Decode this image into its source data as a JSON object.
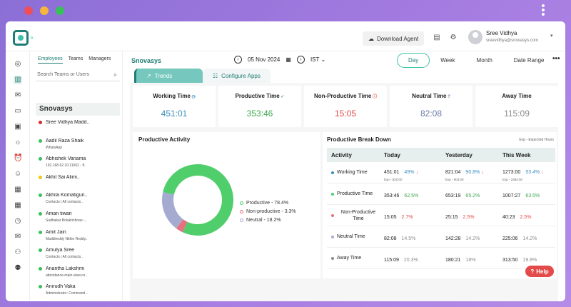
{
  "colors": {
    "accent": "#1e7d74",
    "accent_light": "#3ec1a8",
    "productive": "#4fce6b",
    "non_productive": "#e5727e",
    "neutral": "#a4aad0",
    "away": "#8d8d8d",
    "working_value": "#3a8dbf",
    "down": "#e34b4b"
  },
  "window_dots": [
    "#ee4e5a",
    "#f6b53f",
    "#37c15a"
  ],
  "header": {
    "download_label": "Download Agent",
    "user_name": "Sree Vidhya",
    "user_email": "sreevidhya@snovasys.com"
  },
  "employees": {
    "tabs": [
      "Employees",
      "Teams",
      "Managers"
    ],
    "search_placeholder": "Search Teams or Users",
    "org_name": "Snovasys",
    "list": [
      {
        "name": "Sree Vidhya Madd..",
        "sub": "",
        "status": "#e0282f"
      },
      {
        "name": "Aadil Raza Shaik",
        "sub": "WhatsApp",
        "status": "#37c15a"
      },
      {
        "name": "Abhishek Vanama",
        "sub": "192.168.62.10:11062 - If..",
        "status": "#37c15a"
      },
      {
        "name": "Akhil Sai Alimi..",
        "sub": "",
        "status": "#f2c613"
      },
      {
        "name": "Akhila Komatigun..",
        "sub": "Contacts | All contacts..",
        "status": "#37c15a"
      },
      {
        "name": "Aman tiwari",
        "sub": "Sudhakar Bolakrishnan -..",
        "status": "#37c15a"
      },
      {
        "name": "Amit Jain",
        "sub": "Maddireddy Nithin Reddy..",
        "status": "#37c15a"
      },
      {
        "name": "Amulya Sree",
        "sub": "Contacts | All contacts..",
        "status": "#37c15a"
      },
      {
        "name": "Anantha Lakshmi",
        "sub": "attendance-main-view.co..",
        "status": "#37c15a"
      },
      {
        "name": "Anirudh Vaka",
        "sub": "Administrator: Command ..",
        "status": "#37c15a"
      },
      {
        "name": "Anuhya Ellandula",
        "sub": "Tasks - Google Chrome",
        "status": "#37c15a"
      }
    ]
  },
  "main": {
    "title": "Snovasys",
    "date": "05 Nov 2024",
    "timezone": "IST",
    "range_tabs": [
      "Day",
      "Week",
      "Month",
      "Date Range"
    ],
    "view_tabs": [
      "Trends",
      "Configure Apps"
    ]
  },
  "stats": [
    {
      "label": "Working Time",
      "value": "451:01",
      "color": "#3a8dbf"
    },
    {
      "label": "Productive Time",
      "value": "353:46",
      "color": "#3fa84f"
    },
    {
      "label": "Non-Productive Time",
      "value": "15:05",
      "color": "#e34b4b"
    },
    {
      "label": "Neutral Time",
      "value": "82:08",
      "color": "#6b7ba7"
    },
    {
      "label": "Away Time",
      "value": "115:09",
      "color": "#8d8d8d"
    }
  ],
  "activity": {
    "title": "Productive Activity",
    "legend": [
      {
        "label": "Productive - 78.4%",
        "color": "#4fce6b"
      },
      {
        "label": "Non-productive - 3.3%",
        "color": "#e5727e"
      },
      {
        "label": "Neutral - 18.2%",
        "color": "#a4aad0"
      }
    ]
  },
  "chart_data": {
    "type": "pie",
    "title": "Productive Activity",
    "categories": [
      "Productive",
      "Non-productive",
      "Neutral"
    ],
    "values": [
      78.4,
      3.3,
      18.2
    ],
    "legend_position": "right"
  },
  "breakdown": {
    "title": "Productive Break Down",
    "note": "Exp - Expected Hours",
    "headers": [
      "Activity",
      "Today",
      "Yesterday",
      "This Week"
    ],
    "rows": [
      {
        "activity": "Working Time",
        "dot": "#3a8dbf",
        "today": "451:01",
        "today_pct": "49%",
        "today_pct_color": "#3a8dbf",
        "today_down": "↓",
        "today_exp": "Exp - 920:00",
        "yesterday": "821:04",
        "yesterday_pct": "90.8%",
        "yesterday_pct_color": "#3a8dbf",
        "yesterday_down": "↓",
        "yesterday_exp": "Exp - 904:00",
        "week": "1273:00",
        "week_pct": "53.4%",
        "week_pct_color": "#3a8dbf",
        "week_down": "↓",
        "week_exp": "Exp - 2384:00"
      },
      {
        "activity": "Productive Time",
        "dot": "#4fce6b",
        "today": "353:46",
        "today_pct": "62.5%",
        "today_pct_color": "#3fa84f",
        "today_down": "",
        "today_exp": "",
        "yesterday": "653:19",
        "yesterday_pct": "65.2%",
        "yesterday_pct_color": "#3fa84f",
        "yesterday_down": "",
        "yesterday_exp": "",
        "week": "1007:27",
        "week_pct": "63.5%",
        "week_pct_color": "#3fa84f",
        "week_down": "",
        "week_exp": ""
      },
      {
        "activity": "Non-Productive Time",
        "dot": "#e5727e",
        "today": "15:05",
        "today_pct": "2.7%",
        "today_pct_color": "#e34b4b",
        "today_down": "",
        "today_exp": "",
        "yesterday": "25:15",
        "yesterday_pct": "2.5%",
        "yesterday_pct_color": "#e34b4b",
        "yesterday_down": "",
        "yesterday_exp": "",
        "week": "40:23",
        "week_pct": "2.5%",
        "week_pct_color": "#e34b4b",
        "week_down": "",
        "week_exp": ""
      },
      {
        "activity": "Neutral Time",
        "dot": "#a4aad0",
        "today": "82:08",
        "today_pct": "14.5%",
        "today_pct_color": "#8d8d8d",
        "today_down": "",
        "today_exp": "",
        "yesterday": "142:28",
        "yesterday_pct": "14.2%",
        "yesterday_pct_color": "#8d8d8d",
        "yesterday_down": "",
        "yesterday_exp": "",
        "week": "225:06",
        "week_pct": "14.2%",
        "week_pct_color": "#8d8d8d",
        "week_down": "",
        "week_exp": ""
      },
      {
        "activity": "Away Time",
        "dot": "#8d8d8d",
        "today": "115:09",
        "today_pct": "20.3%",
        "today_pct_color": "#8d8d8d",
        "today_down": "",
        "today_exp": "",
        "yesterday": "180:21",
        "yesterday_pct": "18%",
        "yesterday_pct_color": "#8d8d8d",
        "yesterday_down": "",
        "yesterday_exp": "",
        "week": "313:50",
        "week_pct": "19.8%",
        "week_pct_color": "#8d8d8d",
        "week_down": "",
        "week_exp": ""
      }
    ]
  },
  "help_label": "Help"
}
